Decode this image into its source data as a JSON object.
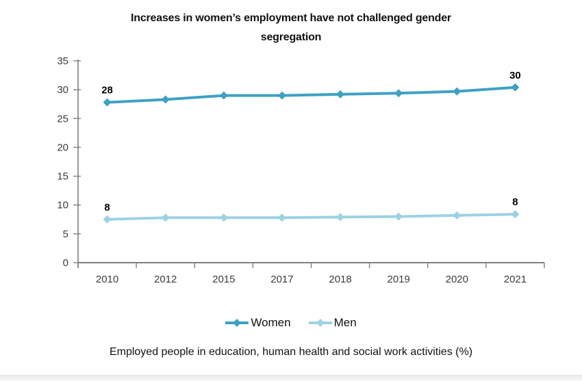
{
  "title": "Increases in women’s employment have not challenged gender segregation",
  "caption": "Employed people in education, human health and social work activities (%)",
  "chart_data": {
    "type": "line",
    "categories": [
      "2010",
      "2012",
      "2015",
      "2017",
      "2018",
      "2019",
      "2020",
      "2021"
    ],
    "series": [
      {
        "name": "Women",
        "color": "#3EA1C3",
        "values": [
          27.8,
          28.3,
          29.0,
          29.0,
          29.2,
          29.4,
          29.7,
          30.4
        ],
        "start_label": "28",
        "end_label": "30"
      },
      {
        "name": "Men",
        "color": "#9DD2E2",
        "values": [
          7.5,
          7.8,
          7.8,
          7.8,
          7.9,
          8.0,
          8.2,
          8.4
        ],
        "start_label": "8",
        "end_label": "8"
      }
    ],
    "xlabel": "",
    "ylabel": "",
    "ylim": [
      0,
      35
    ],
    "ytick_step": 5,
    "yticks": [
      0,
      5,
      10,
      15,
      20,
      25,
      30,
      35
    ],
    "grid": false,
    "marker": "diamond",
    "legend_position": "bottom",
    "axis_color": "#7F7F7F",
    "tick_label_color": "#3B3B3B",
    "point_label_color": "#000000"
  }
}
